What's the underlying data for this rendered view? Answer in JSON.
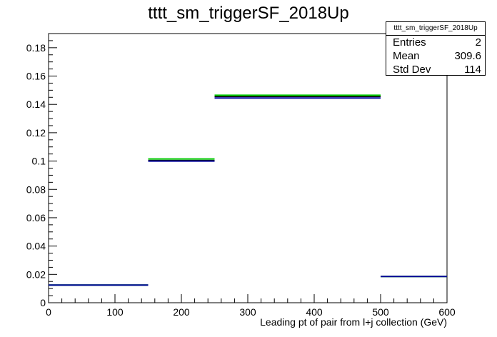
{
  "chart_data": {
    "type": "histogram",
    "title": "tttt_sm_triggerSF_2018Up",
    "xlabel": "Leading pt of pair from l+j collection (GeV)",
    "ylabel": "",
    "xlim": [
      0,
      600
    ],
    "ylim": [
      0,
      0.19
    ],
    "x_ticks": [
      0,
      100,
      200,
      300,
      400,
      500,
      600
    ],
    "y_ticks": [
      0,
      0.02,
      0.04,
      0.06,
      0.08,
      0.1,
      0.12,
      0.14,
      0.16,
      0.18
    ],
    "x_tick_labels": [
      "0",
      "100",
      "200",
      "300",
      "400",
      "500",
      "600"
    ],
    "y_tick_labels": [
      "0",
      "0.02",
      "0.04",
      "0.06",
      "0.08",
      "0.1",
      "0.12",
      "0.14",
      "0.16",
      "0.18"
    ],
    "grid": false,
    "legend": "none",
    "bins": [
      {
        "xlow": 0,
        "xhigh": 150,
        "value": 0.0125,
        "up": 0.0125,
        "down": 0.0125
      },
      {
        "xlow": 150,
        "xhigh": 250,
        "value": 0.1005,
        "up": 0.1015,
        "down": 0.1
      },
      {
        "xlow": 250,
        "xhigh": 500,
        "value": 0.1455,
        "up": 0.1465,
        "down": 0.1445
      },
      {
        "xlow": 500,
        "xhigh": 600,
        "value": 0.0185,
        "up": 0.0185,
        "down": 0.0185
      }
    ],
    "stats": {
      "title": "tttt_sm_triggerSF_2018Up",
      "entries_label": "Entries",
      "entries": "2",
      "mean_label": "Mean",
      "mean": "309.6",
      "stddev_label": "Std Dev",
      "stddev": "114"
    },
    "colors": {
      "nominal": "#000000",
      "up": "#00cc00",
      "down": "#000099",
      "axis": "#000000"
    }
  }
}
